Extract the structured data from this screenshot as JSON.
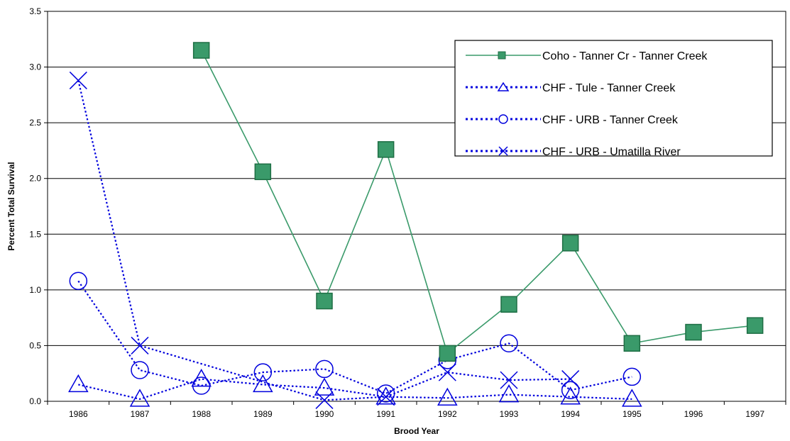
{
  "chart_data": {
    "type": "line",
    "title": "",
    "xlabel": "Brood Year",
    "ylabel": "Percent Total Survival",
    "categories": [
      "1986",
      "1987",
      "1988",
      "1989",
      "1990",
      "1991",
      "1992",
      "1993",
      "1994",
      "1995",
      "1996",
      "1997"
    ],
    "ylim": [
      0,
      3.5
    ],
    "yticks": [
      "0.0",
      "0.5",
      "1.0",
      "1.5",
      "2.0",
      "2.5",
      "3.0",
      "3.5"
    ],
    "grid": "horizontal",
    "legend_position": "top-right",
    "series": [
      {
        "name": "Coho - Tanner Cr - Tanner Creek",
        "marker": "filled-square",
        "line": "solid",
        "color": "#3a9a6a",
        "values": [
          null,
          null,
          3.15,
          2.06,
          0.9,
          2.26,
          0.43,
          0.87,
          1.42,
          0.52,
          0.62,
          0.68
        ]
      },
      {
        "name": "CHF - Tule - Tanner Creek",
        "marker": "triangle",
        "line": "dotted",
        "color": "#0000dd",
        "values": [
          0.15,
          0.02,
          0.2,
          0.15,
          0.12,
          0.04,
          0.03,
          0.06,
          0.04,
          0.02,
          null,
          null
        ]
      },
      {
        "name": "CHF - URB - Tanner Creek",
        "marker": "circle",
        "line": "dotted",
        "color": "#0000dd",
        "values": [
          1.08,
          0.28,
          0.14,
          0.26,
          0.29,
          0.07,
          0.37,
          0.52,
          0.1,
          0.22,
          null,
          null
        ]
      },
      {
        "name": "CHF - URB - Umatilla River",
        "marker": "x",
        "line": "dotted",
        "color": "#0000dd",
        "values": [
          2.88,
          0.5,
          null,
          null,
          0.01,
          0.04,
          0.26,
          0.19,
          0.2,
          null,
          null,
          null
        ]
      }
    ]
  }
}
